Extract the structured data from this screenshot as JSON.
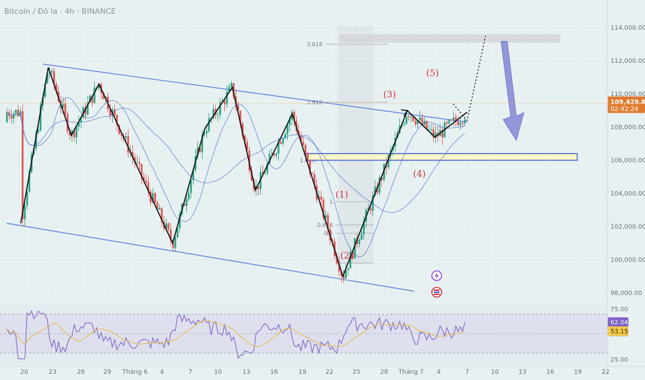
{
  "header": {
    "title": "Bitcoin / Đô la · 4h · BINANCE"
  },
  "colors": {
    "background": "#e8f1f2",
    "up": "#1f9e7f",
    "down": "#e04a4a",
    "channel": "#4a6fd6",
    "zigzag": "#111111",
    "wave_label": "#d0323f",
    "ma_line": "#4e72c7",
    "zone_fill": "#fbf6c8",
    "zone_border": "#2b4fd6",
    "arrow": "#8a8ed8",
    "target_box": "#d5d6d9",
    "rsi_line": "#7b5fc4",
    "rsi_ma": "#e6b84a"
  },
  "icons": [
    "lightning-icon",
    "flag-icon"
  ],
  "chart_data": {
    "type": "candlestick",
    "title": "Bitcoin / Đô la · 4h · BINANCE",
    "y_axis": {
      "ticks": [
        "114,000.00",
        "112,000.00",
        "110,000.00",
        "108,000.00",
        "106,000.00",
        "104,000.00",
        "102,000.00",
        "100,000.00",
        "98,000.00"
      ],
      "ylim": [
        97500,
        114500
      ]
    },
    "x_axis": {
      "ticks": [
        "20",
        "23",
        "26",
        "29",
        "Tháng 6",
        "4",
        "7",
        "10",
        "13",
        "16",
        "19",
        "22",
        "25",
        "28",
        "Tháng 7",
        "4",
        "7",
        "10",
        "13",
        "16",
        "19",
        "22"
      ]
    },
    "current_price": {
      "value": "109,429.81",
      "countdown": "02:42:24"
    },
    "wave_labels": [
      "(1)",
      "(2)",
      "(3)",
      "(4)",
      "(5)"
    ],
    "fib_levels": [
      {
        "label": "3.618",
        "value": 113000
      },
      {
        "label": "2.618",
        "value": 109500
      },
      {
        "label": "1.618",
        "value": 106000
      },
      {
        "label": "1",
        "value": 103500
      },
      {
        "label": "0.618",
        "value": 102100
      },
      {
        "label": "0.5",
        "value": 101600
      }
    ],
    "support_zone": {
      "low": 106000,
      "high": 106400
    },
    "target_zone": {
      "low": 113100,
      "high": 113600
    },
    "channel": {
      "upper": [
        {
          "x": 0,
          "y": 111800
        },
        {
          "x": 100,
          "y": 108300
        }
      ],
      "lower": [
        {
          "x": 0,
          "y": 102200
        },
        {
          "x": 87,
          "y": 98100
        }
      ]
    },
    "zigzag": [
      {
        "x": 3,
        "y": 102200
      },
      {
        "x": 9,
        "y": 111600
      },
      {
        "x": 14,
        "y": 107500
      },
      {
        "x": 20,
        "y": 110600
      },
      {
        "x": 36,
        "y": 101000
      },
      {
        "x": 43,
        "y": 107900
      },
      {
        "x": 49,
        "y": 110400
      },
      {
        "x": 54,
        "y": 104200
      },
      {
        "x": 62,
        "y": 108800
      },
      {
        "x": 73,
        "y": 99000
      },
      {
        "x": 87,
        "y": 109000
      },
      {
        "x": 93,
        "y": 107400
      },
      {
        "x": 100,
        "y": 108900
      }
    ],
    "projection": [
      {
        "x": 97,
        "y": 109400
      },
      {
        "x": 100,
        "y": 108400
      },
      {
        "x": 104,
        "y": 113500
      }
    ],
    "rsi": {
      "ticks": [
        "75.00",
        "50.00",
        "25.00"
      ],
      "ylim": [
        20,
        80
      ],
      "current": "62.04",
      "ma_current": "53.15"
    }
  }
}
